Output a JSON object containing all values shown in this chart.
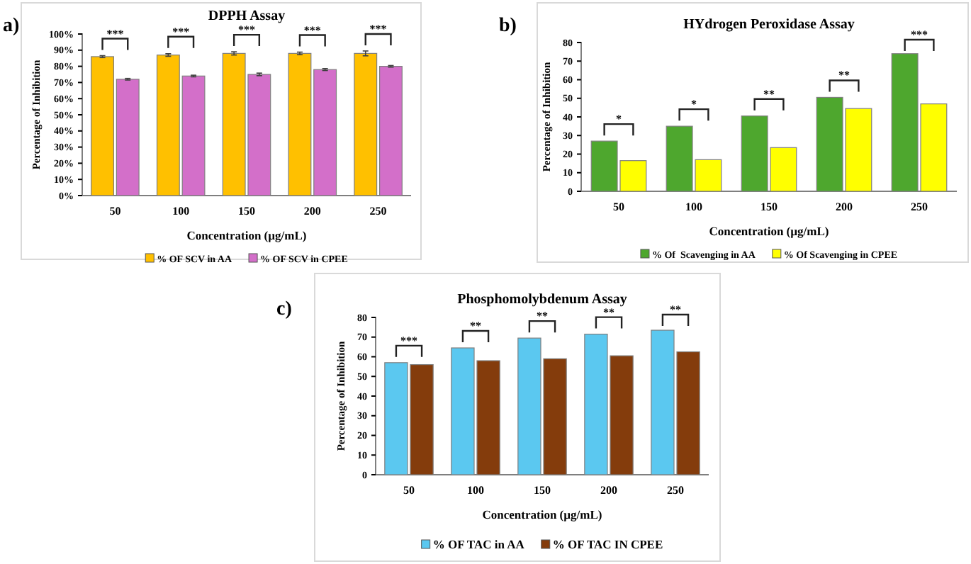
{
  "chart_data": [
    {
      "type": "bar",
      "title": "DPPH Assay",
      "xlabel": "Concentration (µg/mL)",
      "ylabel": "Percentage of Inhibition",
      "categories": [
        "50",
        "100",
        "150",
        "200",
        "250"
      ],
      "series": [
        {
          "name": "% OF SCV in AA",
          "color": "#ffc000",
          "values": [
            86,
            87,
            88,
            88,
            88
          ],
          "errors": [
            0.6,
            0.8,
            1,
            0.8,
            1.5
          ]
        },
        {
          "name": "% OF SCV in CPEE",
          "color": "#d36fc9",
          "values": [
            72,
            74,
            75,
            78,
            80
          ],
          "errors": [
            0.5,
            0.5,
            0.8,
            0.6,
            0.5
          ]
        }
      ],
      "ylim": [
        0,
        100
      ],
      "yticks": [
        {
          "value": 0,
          "label": "0%"
        },
        {
          "value": 10,
          "label": "10%"
        },
        {
          "value": 20,
          "label": "20%"
        },
        {
          "value": 30,
          "label": "30%"
        },
        {
          "value": 40,
          "label": "40%"
        },
        {
          "value": 50,
          "label": "50%"
        },
        {
          "value": 60,
          "label": "60%"
        },
        {
          "value": 70,
          "label": "70%"
        },
        {
          "value": 80,
          "label": "80%"
        },
        {
          "value": 90,
          "label": "90%"
        },
        {
          "value": 100,
          "label": "100%"
        }
      ],
      "grid": false,
      "legend": "bottom",
      "annotations": [
        "a)",
        "***",
        "***",
        "***",
        "***",
        "***"
      ]
    },
    {
      "type": "bar",
      "title": "HYdrogen Peroxidase Assay",
      "xlabel": "Concentration (µg/mL)",
      "ylabel": "Percentage of Inhibition",
      "categories": [
        "50",
        "100",
        "150",
        "200",
        "250"
      ],
      "series": [
        {
          "name": "% Of  Scavenging in AA",
          "color": "#4ea72e",
          "values": [
            27,
            35,
            40.5,
            50.5,
            74
          ]
        },
        {
          "name": "% Of Scavenging in CPEE",
          "color": "#ffff00",
          "values": [
            16.5,
            17,
            23.5,
            44.5,
            47
          ]
        }
      ],
      "ylim": [
        0,
        80
      ],
      "yticks": [
        0,
        10,
        20,
        30,
        40,
        50,
        60,
        70,
        80
      ],
      "grid": false,
      "legend": "bottom",
      "annotations": [
        "b)",
        "*",
        "*",
        "**",
        "**",
        "***"
      ]
    },
    {
      "type": "bar",
      "title": "Phosphomolybdenum Assay",
      "xlabel": "Concentration (µg/mL)",
      "ylabel": "Percentage of Inhibition",
      "categories": [
        "50",
        "100",
        "150",
        "200",
        "250"
      ],
      "series": [
        {
          "name": "% OF TAC in AA",
          "color": "#5bc8f0",
          "values": [
            57,
            64.5,
            69.5,
            71.5,
            73.5
          ]
        },
        {
          "name": "% OF TAC IN CPEE",
          "color": "#843c0c",
          "values": [
            56,
            58,
            59,
            60.5,
            62.5
          ]
        }
      ],
      "ylim": [
        0,
        80
      ],
      "yticks": [
        0,
        10,
        20,
        30,
        40,
        50,
        60,
        70,
        80
      ],
      "grid": false,
      "legend": "bottom",
      "annotations": [
        "c)",
        "***",
        "**",
        "**",
        "**",
        "**"
      ]
    }
  ]
}
